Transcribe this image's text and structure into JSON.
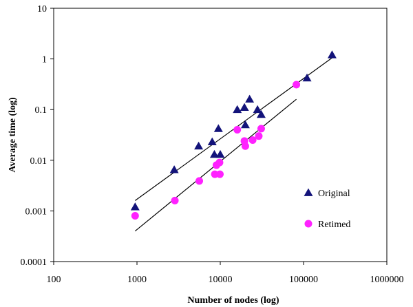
{
  "chart_data": {
    "type": "scatter",
    "xlabel": "Number of nodes (log)",
    "ylabel": "Average time (log)",
    "x_scale": "log",
    "y_scale": "log",
    "xlim": [
      100,
      1000000
    ],
    "ylim": [
      0.0001,
      10
    ],
    "x_ticks": [
      "100",
      "1000",
      "10000",
      "100000",
      "1000000"
    ],
    "y_ticks": [
      "0.0001",
      "0.001",
      "0.01",
      "0.1",
      "1",
      "10"
    ],
    "grid": false,
    "legend_position": "right",
    "series": [
      {
        "name": "Original",
        "marker": "triangle",
        "color": "#13137a",
        "points": [
          [
            950,
            0.0012
          ],
          [
            2800,
            0.0065
          ],
          [
            5500,
            0.019
          ],
          [
            8000,
            0.023
          ],
          [
            8500,
            0.013
          ],
          [
            9500,
            0.042
          ],
          [
            10000,
            0.013
          ],
          [
            16000,
            0.1
          ],
          [
            19500,
            0.11
          ],
          [
            20000,
            0.05
          ],
          [
            22500,
            0.16
          ],
          [
            28000,
            0.1
          ],
          [
            31000,
            0.08
          ],
          [
            110000,
            0.42
          ],
          [
            220000,
            1.2
          ]
        ],
        "trendline": [
          [
            950,
            0.0016
          ],
          [
            220000,
            1.05
          ]
        ]
      },
      {
        "name": "Retimed",
        "marker": "circle",
        "color": "#ff22ff",
        "points": [
          [
            950,
            0.0008
          ],
          [
            2850,
            0.0016
          ],
          [
            5600,
            0.0039
          ],
          [
            8600,
            0.0053
          ],
          [
            9000,
            0.008
          ],
          [
            9800,
            0.009
          ],
          [
            9900,
            0.0053
          ],
          [
            16000,
            0.04
          ],
          [
            19500,
            0.024
          ],
          [
            20000,
            0.019
          ],
          [
            24500,
            0.025
          ],
          [
            29000,
            0.03
          ],
          [
            31000,
            0.042
          ],
          [
            82000,
            0.31
          ]
        ],
        "trendline": [
          [
            950,
            0.0004
          ],
          [
            82000,
            0.16
          ]
        ]
      }
    ]
  }
}
